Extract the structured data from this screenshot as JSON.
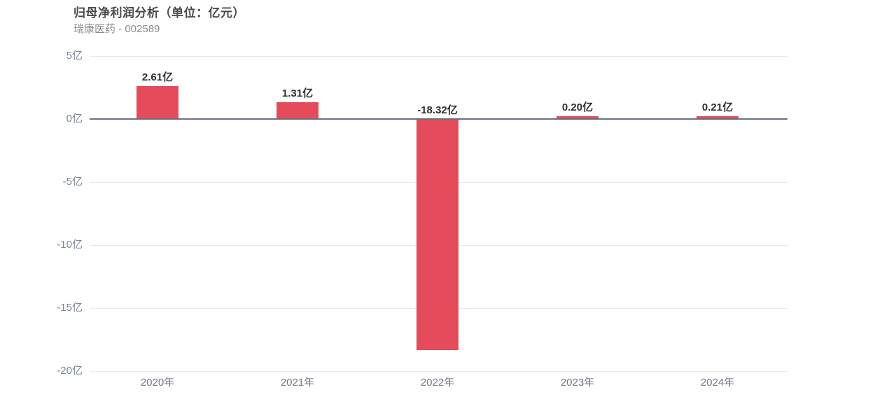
{
  "chart_data": {
    "type": "bar",
    "title": "归母净利润分析（单位：亿元）",
    "subtitle": "瑞康医药 - 002589",
    "categories": [
      "2020年",
      "2021年",
      "2022年",
      "2023年",
      "2024年"
    ],
    "values": [
      2.61,
      1.31,
      -18.32,
      0.2,
      0.21
    ],
    "value_labels": [
      "2.61亿",
      "1.31亿",
      "-18.32亿",
      "0.20亿",
      "0.21亿"
    ],
    "xlabel": "",
    "ylabel": "",
    "ylim": [
      -20,
      5
    ],
    "yticks": [
      {
        "value": 5,
        "label": "5亿"
      },
      {
        "value": 0,
        "label": "0亿"
      },
      {
        "value": -5,
        "label": "-5亿"
      },
      {
        "value": -10,
        "label": "-10亿"
      },
      {
        "value": -15,
        "label": "-15亿"
      },
      {
        "value": -20,
        "label": "-20亿"
      }
    ],
    "grid": true,
    "legend_position": "none",
    "bar_color": "#e44c5c",
    "zero_line_color": "#6b7080",
    "grid_color": "#e3e8f2",
    "title_color": "#4a4a4a",
    "subtitle_color": "#8c8c8c"
  }
}
